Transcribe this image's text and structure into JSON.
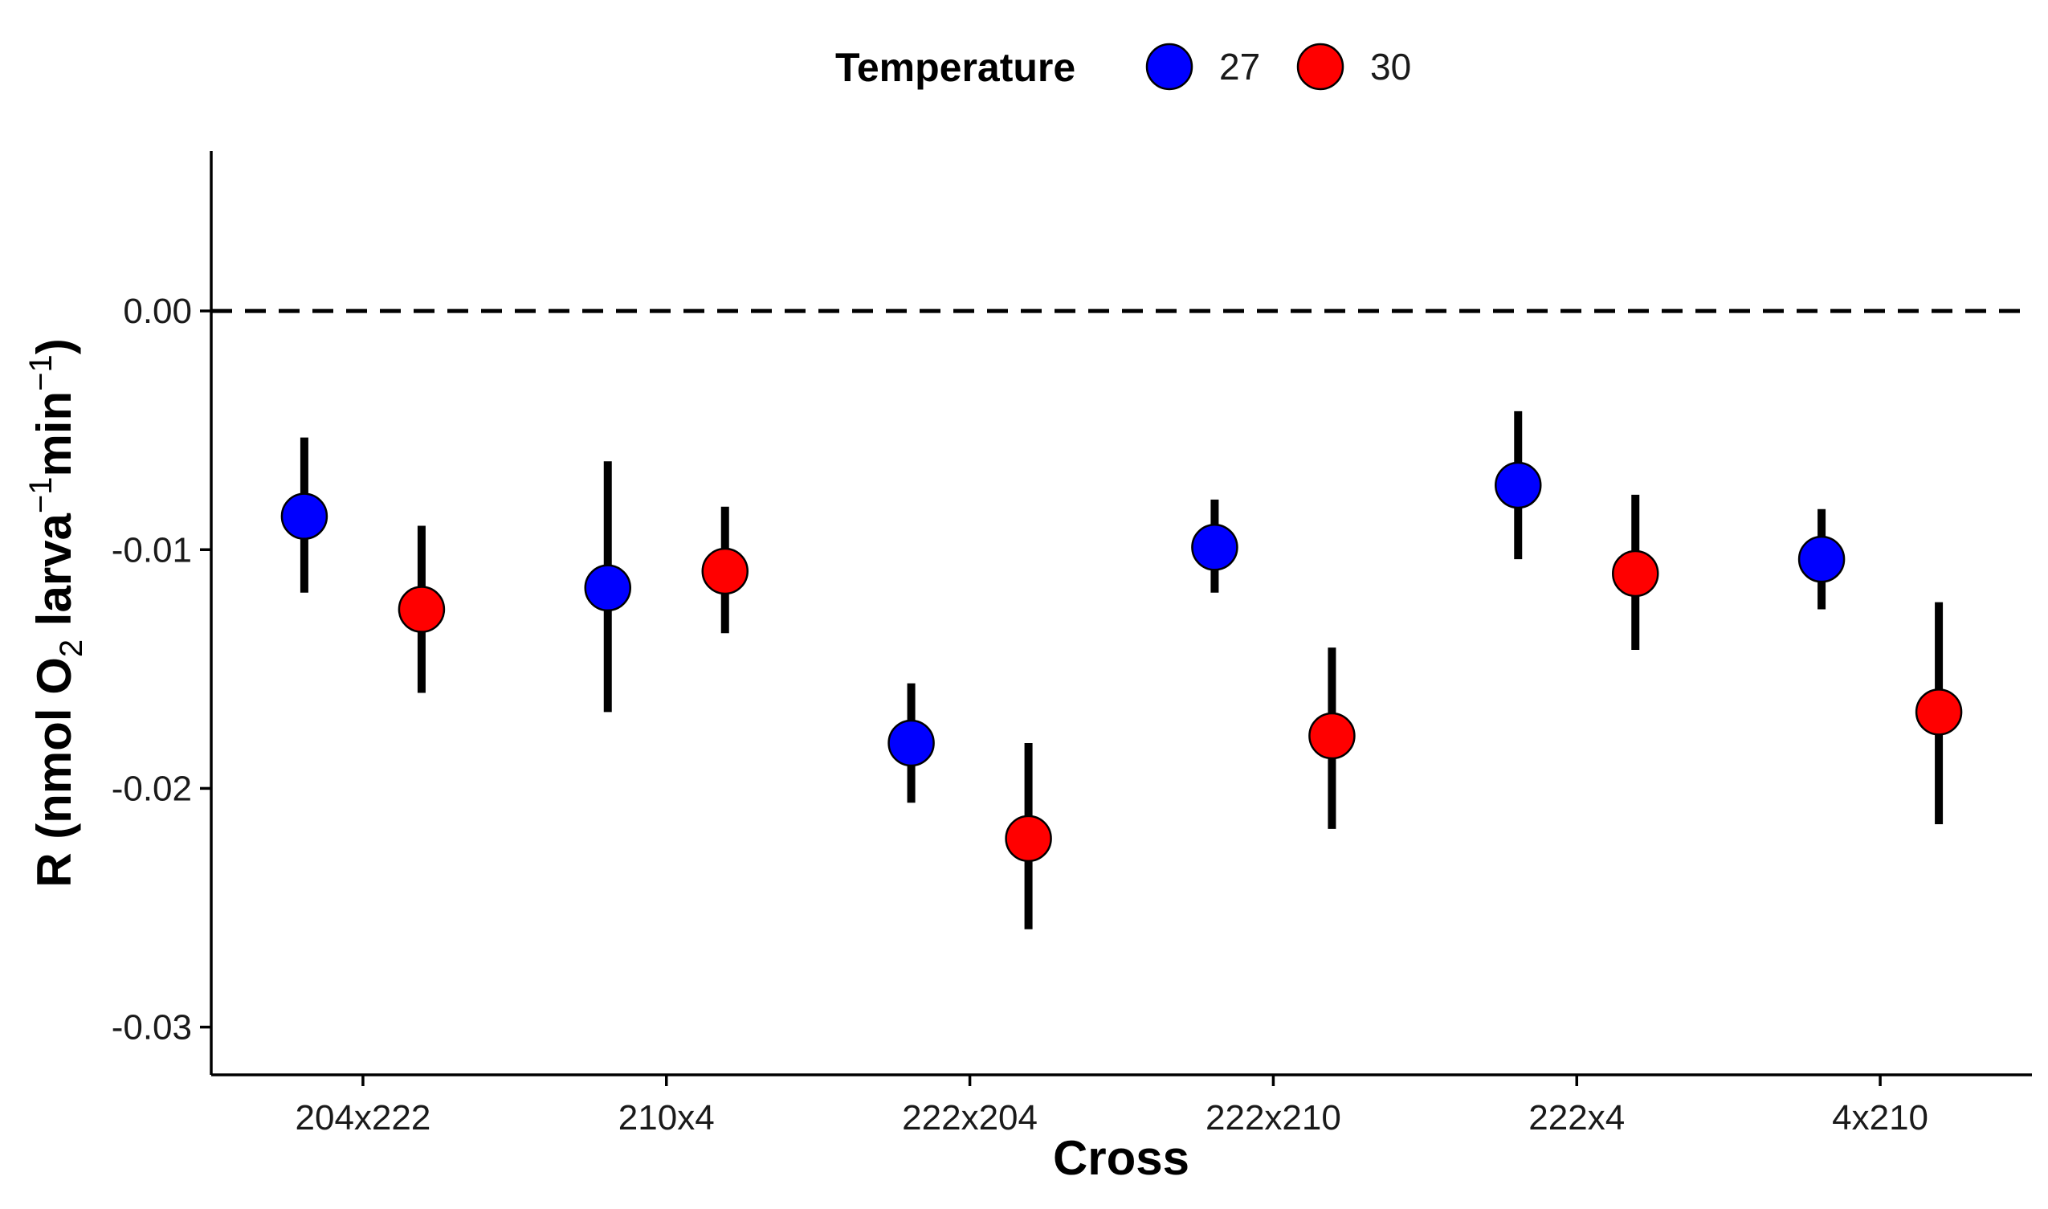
{
  "chart_data": {
    "type": "scatter",
    "subtype": "point-with-errorbars",
    "title": "",
    "xlabel": "Cross",
    "ylabel": {
      "before_o": "R (nmol O",
      "o_sub": "2",
      "larva": " larva",
      "larva_sup": "−1",
      "min": "min",
      "min_sup": "−1",
      "close": ")"
    },
    "categories": [
      "204x222",
      "210x4",
      "222x204",
      "222x210",
      "222x4",
      "4x210"
    ],
    "ylim": [
      -0.032,
      0.0067
    ],
    "yticks": [
      0.0,
      -0.01,
      -0.02,
      -0.03
    ],
    "ytick_labels": [
      "0.00",
      "-0.01",
      "-0.02",
      "-0.03"
    ],
    "reference_line": {
      "y": 0.0,
      "style": "dashed",
      "color": "#000000"
    },
    "grid": false,
    "legend": {
      "title": "Temperature",
      "position": "top",
      "entries": [
        {
          "label": "27",
          "color": "#0000ff"
        },
        {
          "label": "30",
          "color": "#ff0000"
        }
      ]
    },
    "series": [
      {
        "name": "27",
        "color": "#0000ff",
        "values": [
          -0.0086,
          -0.0116,
          -0.0181,
          -0.0099,
          -0.0073,
          -0.0104
        ],
        "lower": [
          -0.0118,
          -0.0168,
          -0.0206,
          -0.0118,
          -0.0104,
          -0.0125
        ],
        "upper": [
          -0.0053,
          -0.0063,
          -0.0156,
          -0.0079,
          -0.0042,
          -0.0083
        ]
      },
      {
        "name": "30",
        "color": "#ff0000",
        "values": [
          -0.0125,
          -0.0109,
          -0.0221,
          -0.0178,
          -0.011,
          -0.0168
        ],
        "lower": [
          -0.016,
          -0.0135,
          -0.0259,
          -0.0217,
          -0.0142,
          -0.0215
        ],
        "upper": [
          -0.009,
          -0.0082,
          -0.0181,
          -0.0141,
          -0.0077,
          -0.0122
        ]
      }
    ]
  }
}
